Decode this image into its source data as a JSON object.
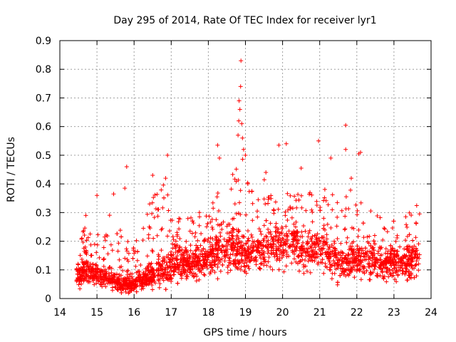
{
  "chart_data": {
    "type": "scatter",
    "title": "Day 295 of 2014, Rate Of TEC Index for receiver lyr1",
    "xlabel": "GPS time / hours",
    "ylabel": "ROTI / TECUs",
    "xlim": [
      14,
      24
    ],
    "ylim": [
      0,
      0.9
    ],
    "xticks": [
      14,
      15,
      16,
      17,
      18,
      19,
      20,
      21,
      22,
      23,
      24
    ],
    "yticks": [
      0,
      0.1,
      0.2,
      0.3,
      0.4,
      0.5,
      0.6,
      0.7,
      0.8,
      0.9
    ],
    "grid": true,
    "marker": "+",
    "color": "#ff0000",
    "series": [
      {
        "name": "ROTI",
        "description": "dense scatter of several thousand ROTI samples; envelope summarised as (hour, min, typical, max)",
        "envelope": [
          [
            14.45,
            0.03,
            0.08,
            0.15
          ],
          [
            14.7,
            0.03,
            0.09,
            0.27
          ],
          [
            15.0,
            0.02,
            0.08,
            0.22
          ],
          [
            15.3,
            0.02,
            0.07,
            0.3
          ],
          [
            15.6,
            0.01,
            0.05,
            0.25
          ],
          [
            15.9,
            0.01,
            0.05,
            0.2
          ],
          [
            16.2,
            0.01,
            0.06,
            0.25
          ],
          [
            16.5,
            0.02,
            0.08,
            0.38
          ],
          [
            16.8,
            0.02,
            0.1,
            0.4
          ],
          [
            17.1,
            0.03,
            0.12,
            0.32
          ],
          [
            17.4,
            0.04,
            0.12,
            0.28
          ],
          [
            17.7,
            0.05,
            0.13,
            0.3
          ],
          [
            18.0,
            0.05,
            0.15,
            0.32
          ],
          [
            18.3,
            0.06,
            0.17,
            0.45
          ],
          [
            18.6,
            0.06,
            0.18,
            0.45
          ],
          [
            18.9,
            0.06,
            0.15,
            0.55
          ],
          [
            19.2,
            0.07,
            0.16,
            0.4
          ],
          [
            19.5,
            0.06,
            0.17,
            0.42
          ],
          [
            19.8,
            0.08,
            0.18,
            0.35
          ],
          [
            20.1,
            0.07,
            0.19,
            0.37
          ],
          [
            20.4,
            0.07,
            0.18,
            0.4
          ],
          [
            20.7,
            0.07,
            0.17,
            0.38
          ],
          [
            21.0,
            0.06,
            0.17,
            0.4
          ],
          [
            21.3,
            0.05,
            0.15,
            0.37
          ],
          [
            21.6,
            0.03,
            0.12,
            0.35
          ],
          [
            21.9,
            0.04,
            0.13,
            0.4
          ],
          [
            22.2,
            0.04,
            0.13,
            0.32
          ],
          [
            22.5,
            0.04,
            0.13,
            0.3
          ],
          [
            22.8,
            0.04,
            0.12,
            0.27
          ],
          [
            23.1,
            0.04,
            0.12,
            0.28
          ],
          [
            23.4,
            0.03,
            0.13,
            0.3
          ],
          [
            23.7,
            0.03,
            0.14,
            0.34
          ]
        ],
        "outliers": [
          [
            14.7,
            0.29
          ],
          [
            15.0,
            0.36
          ],
          [
            15.45,
            0.365
          ],
          [
            15.75,
            0.385
          ],
          [
            15.8,
            0.46
          ],
          [
            16.5,
            0.43
          ],
          [
            16.85,
            0.42
          ],
          [
            16.9,
            0.5
          ],
          [
            18.25,
            0.535
          ],
          [
            18.3,
            0.49
          ],
          [
            18.8,
            0.57
          ],
          [
            18.82,
            0.62
          ],
          [
            18.85,
            0.66
          ],
          [
            18.83,
            0.69
          ],
          [
            18.87,
            0.74
          ],
          [
            18.88,
            0.83
          ],
          [
            18.9,
            0.61
          ],
          [
            18.92,
            0.56
          ],
          [
            18.95,
            0.52
          ],
          [
            19.0,
            0.5
          ],
          [
            19.55,
            0.44
          ],
          [
            19.9,
            0.535
          ],
          [
            20.1,
            0.54
          ],
          [
            20.5,
            0.455
          ],
          [
            20.97,
            0.55
          ],
          [
            21.3,
            0.49
          ],
          [
            21.7,
            0.605
          ],
          [
            21.7,
            0.52
          ],
          [
            21.85,
            0.42
          ],
          [
            22.05,
            0.505
          ],
          [
            22.1,
            0.51
          ]
        ]
      }
    ]
  }
}
